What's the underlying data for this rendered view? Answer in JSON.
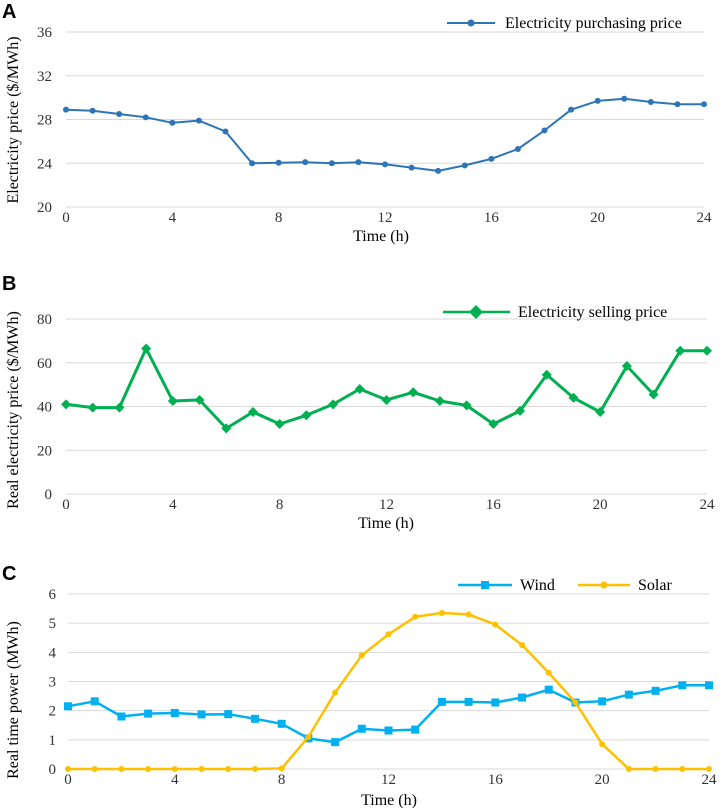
{
  "chart_data": [
    {
      "panel": "A",
      "type": "line",
      "xlabel": "Time  (h)",
      "ylabel": "Electricity price ($/MWh)",
      "xlim": [
        0,
        24
      ],
      "xticks": [
        "0",
        "4",
        "8",
        "12",
        "16",
        "20",
        "24"
      ],
      "ylim": [
        20,
        36
      ],
      "yticks": [
        "20",
        "24",
        "28",
        "32",
        "36"
      ],
      "grid": true,
      "legend_position": "top-right",
      "series": [
        {
          "name": "Electricity purchasing price",
          "color": "#2e75b6",
          "marker": "circle",
          "x": [
            0,
            1,
            2,
            3,
            4,
            5,
            6,
            7,
            8,
            9,
            10,
            11,
            12,
            13,
            14,
            15,
            16,
            17,
            18,
            19,
            20,
            21,
            22,
            23,
            24
          ],
          "values": [
            28.9,
            28.8,
            28.5,
            28.2,
            27.7,
            27.9,
            26.9,
            24.0,
            24.05,
            24.1,
            24.0,
            24.1,
            23.9,
            23.6,
            23.3,
            23.8,
            24.4,
            25.3,
            27.0,
            28.9,
            29.7,
            29.9,
            29.6,
            29.4,
            29.4
          ]
        }
      ]
    },
    {
      "panel": "B",
      "type": "line",
      "xlabel": "Time  (h)",
      "ylabel": "Real electricity price ($/MWh)",
      "xlim": [
        0,
        24
      ],
      "xticks": [
        "0",
        "4",
        "8",
        "12",
        "16",
        "20",
        "24"
      ],
      "ylim": [
        0,
        80
      ],
      "yticks": [
        "0",
        "20",
        "40",
        "60",
        "80"
      ],
      "grid": true,
      "legend_position": "top-right",
      "series": [
        {
          "name": "Electricity selling price",
          "color": "#00b050",
          "marker": "diamond",
          "x": [
            0,
            1,
            2,
            3,
            4,
            5,
            6,
            7,
            8,
            9,
            10,
            11,
            12,
            13,
            14,
            15,
            16,
            17,
            18,
            19,
            20,
            21,
            22,
            23,
            24
          ],
          "values": [
            41,
            39.5,
            39.5,
            66.5,
            42.5,
            43,
            30,
            37.5,
            32,
            36,
            41,
            48,
            43,
            46.5,
            42.5,
            40.5,
            32,
            38,
            54.5,
            44,
            37.5,
            58.5,
            45.5,
            65.5,
            65.5
          ]
        }
      ]
    },
    {
      "panel": "C",
      "type": "line",
      "xlabel": "Time  (h)",
      "ylabel": "Real time power (MWh)",
      "xlim": [
        0,
        24
      ],
      "xticks": [
        "0",
        "4",
        "8",
        "12",
        "16",
        "20",
        "24"
      ],
      "ylim": [
        0,
        6
      ],
      "yticks": [
        "0",
        "1",
        "2",
        "3",
        "4",
        "5",
        "6"
      ],
      "grid": true,
      "legend_position": "top-right",
      "series": [
        {
          "name": "Wind",
          "color": "#00b0f0",
          "marker": "square",
          "x": [
            0,
            1,
            2,
            3,
            4,
            5,
            6,
            7,
            8,
            9,
            10,
            11,
            12,
            13,
            14,
            15,
            16,
            17,
            18,
            19,
            20,
            21,
            22,
            23,
            24
          ],
          "values": [
            2.15,
            2.32,
            1.8,
            1.9,
            1.92,
            1.87,
            1.88,
            1.72,
            1.55,
            1.05,
            0.92,
            1.38,
            1.32,
            1.35,
            2.3,
            2.3,
            2.28,
            2.45,
            2.72,
            2.28,
            2.32,
            2.55,
            2.68,
            2.87,
            2.87
          ]
        },
        {
          "name": "Solar",
          "color": "#ffc000",
          "marker": "circle",
          "x": [
            0,
            1,
            2,
            3,
            4,
            5,
            6,
            7,
            8,
            9,
            10,
            11,
            12,
            13,
            14,
            15,
            16,
            17,
            18,
            19,
            20,
            21,
            22,
            23,
            24
          ],
          "values": [
            0,
            0,
            0,
            0,
            0,
            0,
            0,
            0,
            0.02,
            1.1,
            2.62,
            3.9,
            4.62,
            5.22,
            5.35,
            5.3,
            4.95,
            4.25,
            3.3,
            2.28,
            0.85,
            0,
            0,
            0,
            0
          ]
        }
      ]
    }
  ]
}
